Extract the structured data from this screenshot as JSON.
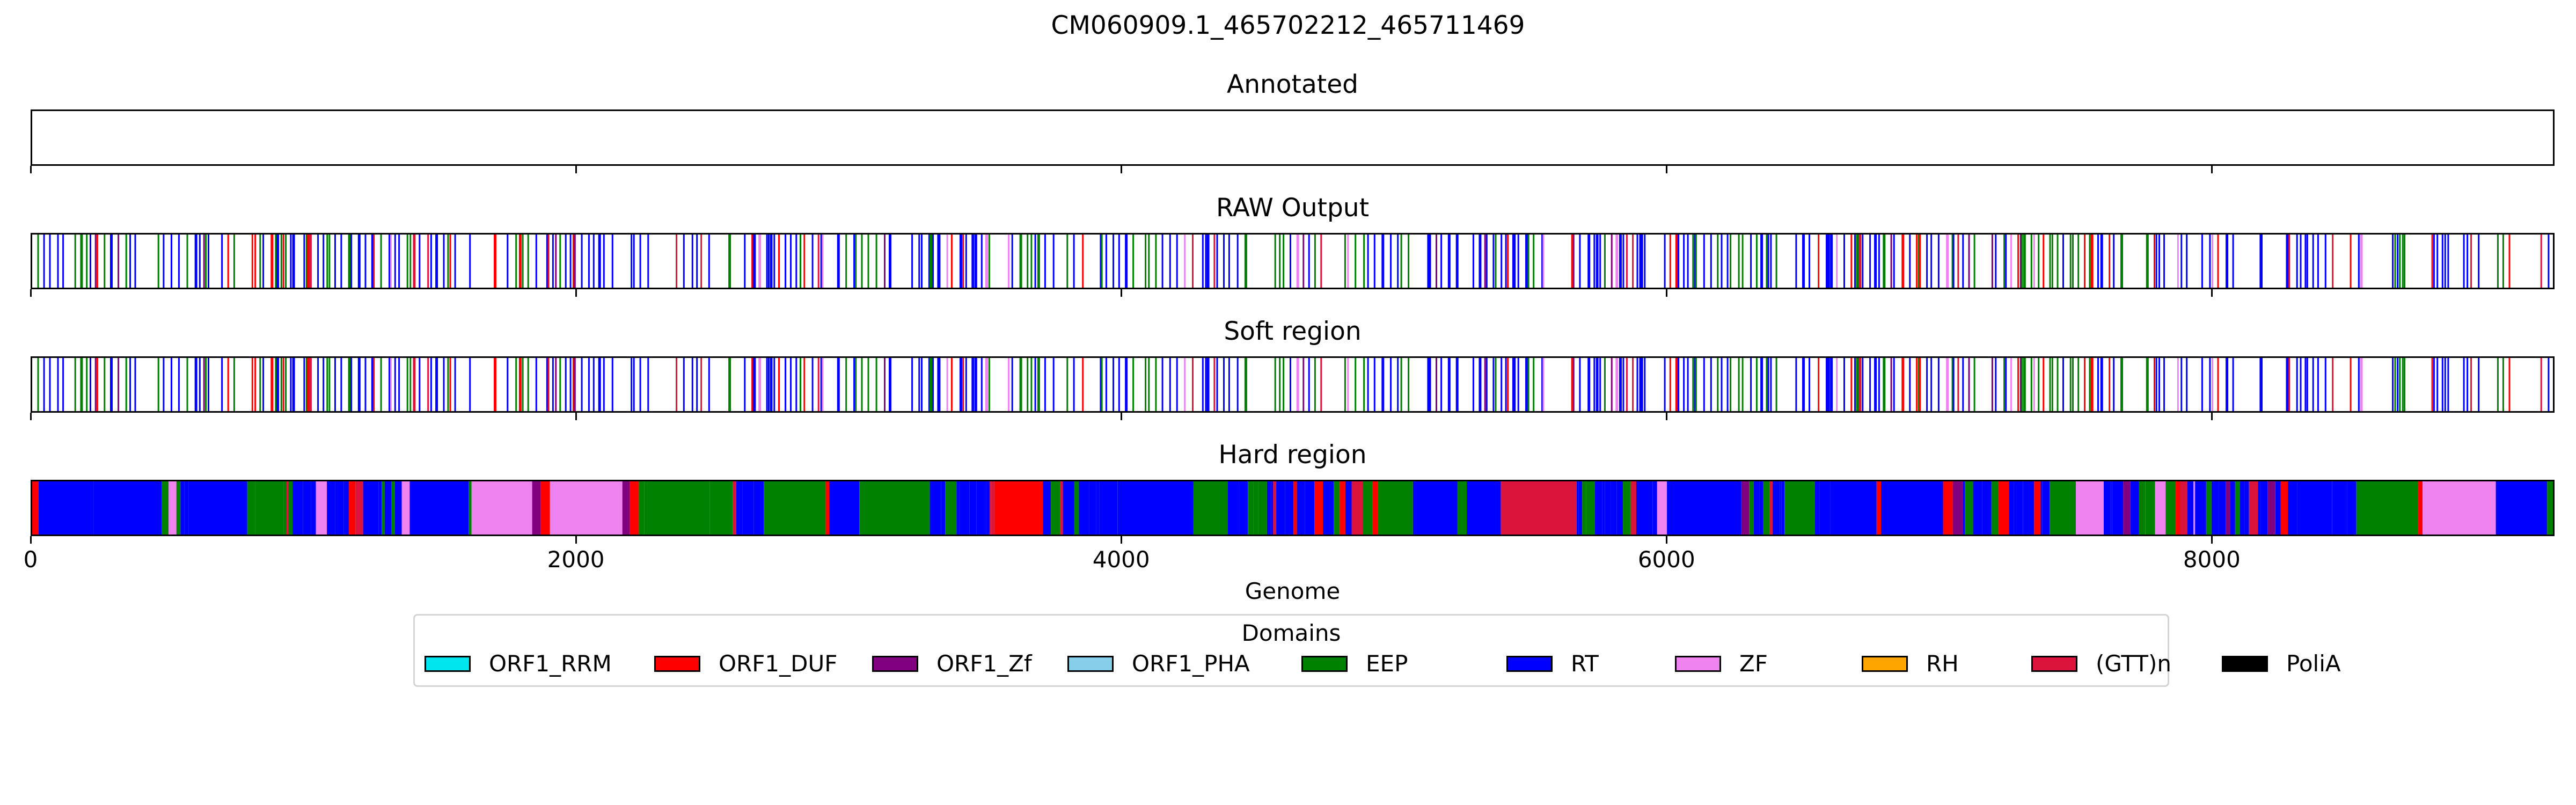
{
  "chart_data": {
    "type": "track",
    "title": "CM060909.1_465702212_465711469",
    "panels": [
      {
        "title": "Annotated",
        "segments": []
      },
      {
        "title": "RAW Output",
        "style": "lines"
      },
      {
        "title": "Soft region",
        "style": "lines"
      },
      {
        "title": "Hard region",
        "style": "blocks"
      }
    ],
    "xlabel": "Genome",
    "xlim": [
      0,
      9257
    ],
    "xticks": [
      0,
      2000,
      4000,
      6000,
      8000
    ],
    "xtick_labels": [
      "0",
      "2000",
      "4000",
      "6000",
      "8000"
    ],
    "legend": {
      "title": "Domains",
      "placement": "below",
      "entries": [
        {
          "label": "ORF1_RRM",
          "color": "#00e5ee"
        },
        {
          "label": "ORF1_DUF",
          "color": "#ff0000"
        },
        {
          "label": "ORF1_Zf",
          "color": "#800080"
        },
        {
          "label": "ORF1_PHA",
          "color": "#87ceeb"
        },
        {
          "label": "EEP",
          "color": "#008000"
        },
        {
          "label": "RT",
          "color": "#0000ff"
        },
        {
          "label": "ZF",
          "color": "#ee82ee"
        },
        {
          "label": "RH",
          "color": "#ffa500"
        },
        {
          "label": "(GTT)n",
          "color": "#dc143c"
        },
        {
          "label": "PoliA",
          "color": "#000000"
        }
      ]
    }
  }
}
